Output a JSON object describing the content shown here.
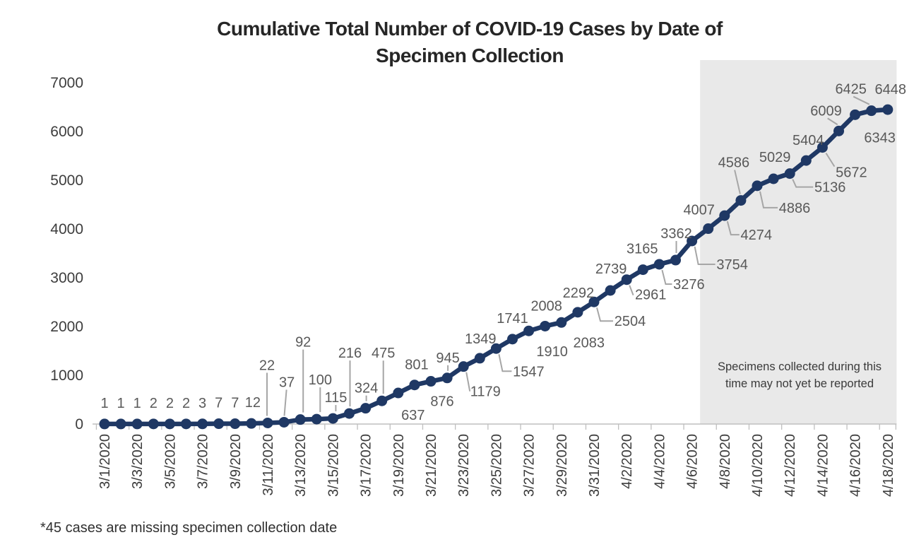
{
  "title": {
    "line1": "Cumulative Total Number of COVID-19 Cases by Date of",
    "line2": "Specimen Collection"
  },
  "annotation": "Specimens collected during this time may not yet be reported",
  "footnote": "*45 cases are missing specimen collection date",
  "colors": {
    "line": "#1F3864",
    "data_label": "#595959",
    "leader": "#A6A6A6",
    "axis": "#BFBFBF",
    "axis_text": "#3d3d3d",
    "shade": "#E9E9E9",
    "title_text": "#262626"
  },
  "chart_data": {
    "type": "line",
    "title": "Cumulative Total Number of COVID-19 Cases by Date of Specimen Collection",
    "xlabel": "",
    "ylabel": "",
    "ylim": [
      0,
      7000
    ],
    "y_ticks": [
      0,
      1000,
      2000,
      3000,
      4000,
      5000,
      6000,
      7000
    ],
    "x_tick_every": 2,
    "grid": false,
    "legend": false,
    "x": [
      "3/1/2020",
      "3/2/2020",
      "3/3/2020",
      "3/4/2020",
      "3/5/2020",
      "3/6/2020",
      "3/7/2020",
      "3/8/2020",
      "3/9/2020",
      "3/10/2020",
      "3/11/2020",
      "3/12/2020",
      "3/13/2020",
      "3/14/2020",
      "3/15/2020",
      "3/16/2020",
      "3/17/2020",
      "3/18/2020",
      "3/19/2020",
      "3/20/2020",
      "3/21/2020",
      "3/22/2020",
      "3/23/2020",
      "3/24/2020",
      "3/25/2020",
      "3/26/2020",
      "3/27/2020",
      "3/28/2020",
      "3/29/2020",
      "3/30/2020",
      "3/31/2020",
      "4/1/2020",
      "4/2/2020",
      "4/3/2020",
      "4/4/2020",
      "4/5/2020",
      "4/6/2020",
      "4/7/2020",
      "4/8/2020",
      "4/9/2020",
      "4/10/2020",
      "4/11/2020",
      "4/12/2020",
      "4/13/2020",
      "4/14/2020",
      "4/15/2020",
      "4/16/2020",
      "4/17/2020",
      "4/18/2020"
    ],
    "values": [
      1,
      1,
      1,
      2,
      2,
      2,
      3,
      7,
      7,
      12,
      22,
      37,
      92,
      100,
      115,
      216,
      324,
      475,
      637,
      801,
      876,
      945,
      1179,
      1349,
      1547,
      1741,
      1910,
      2008,
      2083,
      2292,
      2504,
      2739,
      2961,
      3165,
      3276,
      3362,
      3754,
      4007,
      4274,
      4586,
      4886,
      5029,
      5136,
      5404,
      5672,
      6009,
      6343,
      6425,
      6448
    ],
    "shaded_region": {
      "start_label": "4/7/2020",
      "end_label": "4/18/2020",
      "note": "Specimens collected during this time may not yet be reported"
    },
    "label_layout": [
      [
        0,
        -30,
        0
      ],
      [
        0,
        -30,
        0
      ],
      [
        0,
        -30,
        0
      ],
      [
        0,
        -30,
        0
      ],
      [
        0,
        -30,
        0
      ],
      [
        0,
        -30,
        0
      ],
      [
        0,
        -30,
        0
      ],
      [
        0,
        -30,
        0
      ],
      [
        0,
        -30,
        0
      ],
      [
        2,
        -30,
        0
      ],
      [
        -1,
        -82,
        1
      ],
      [
        4,
        -57,
        2
      ],
      [
        4,
        -110,
        1
      ],
      [
        5,
        -56,
        1
      ],
      [
        4,
        -30,
        1
      ],
      [
        1,
        -86,
        1
      ],
      [
        1,
        -29,
        1
      ],
      [
        2,
        -68,
        1
      ],
      [
        21,
        31,
        0
      ],
      [
        3,
        -29,
        0
      ],
      [
        16,
        28,
        0
      ],
      [
        1,
        -29,
        1
      ],
      [
        31,
        35,
        3
      ],
      [
        1,
        -28,
        0
      ],
      [
        46,
        32,
        3
      ],
      [
        0,
        -30,
        0
      ],
      [
        33,
        29,
        0
      ],
      [
        2,
        -29,
        0
      ],
      [
        39,
        28,
        0
      ],
      [
        1,
        -28,
        0
      ],
      [
        51,
        27,
        3
      ],
      [
        1,
        -31,
        0
      ],
      [
        34,
        21,
        3
      ],
      [
        -1,
        -30,
        0
      ],
      [
        42,
        28,
        3
      ],
      [
        1,
        -38,
        1
      ],
      [
        57,
        33,
        3
      ],
      [
        -13,
        -27,
        0
      ],
      [
        45,
        27,
        3
      ],
      [
        -10,
        -54,
        2
      ],
      [
        53,
        31,
        3
      ],
      [
        2,
        -31,
        0
      ],
      [
        57,
        19,
        3
      ],
      [
        3,
        -29,
        0
      ],
      [
        41,
        35,
        2
      ],
      [
        -18,
        -29,
        2
      ],
      [
        35,
        32,
        0
      ],
      [
        -29,
        -31,
        2
      ],
      [
        4,
        -29,
        0
      ]
    ]
  }
}
